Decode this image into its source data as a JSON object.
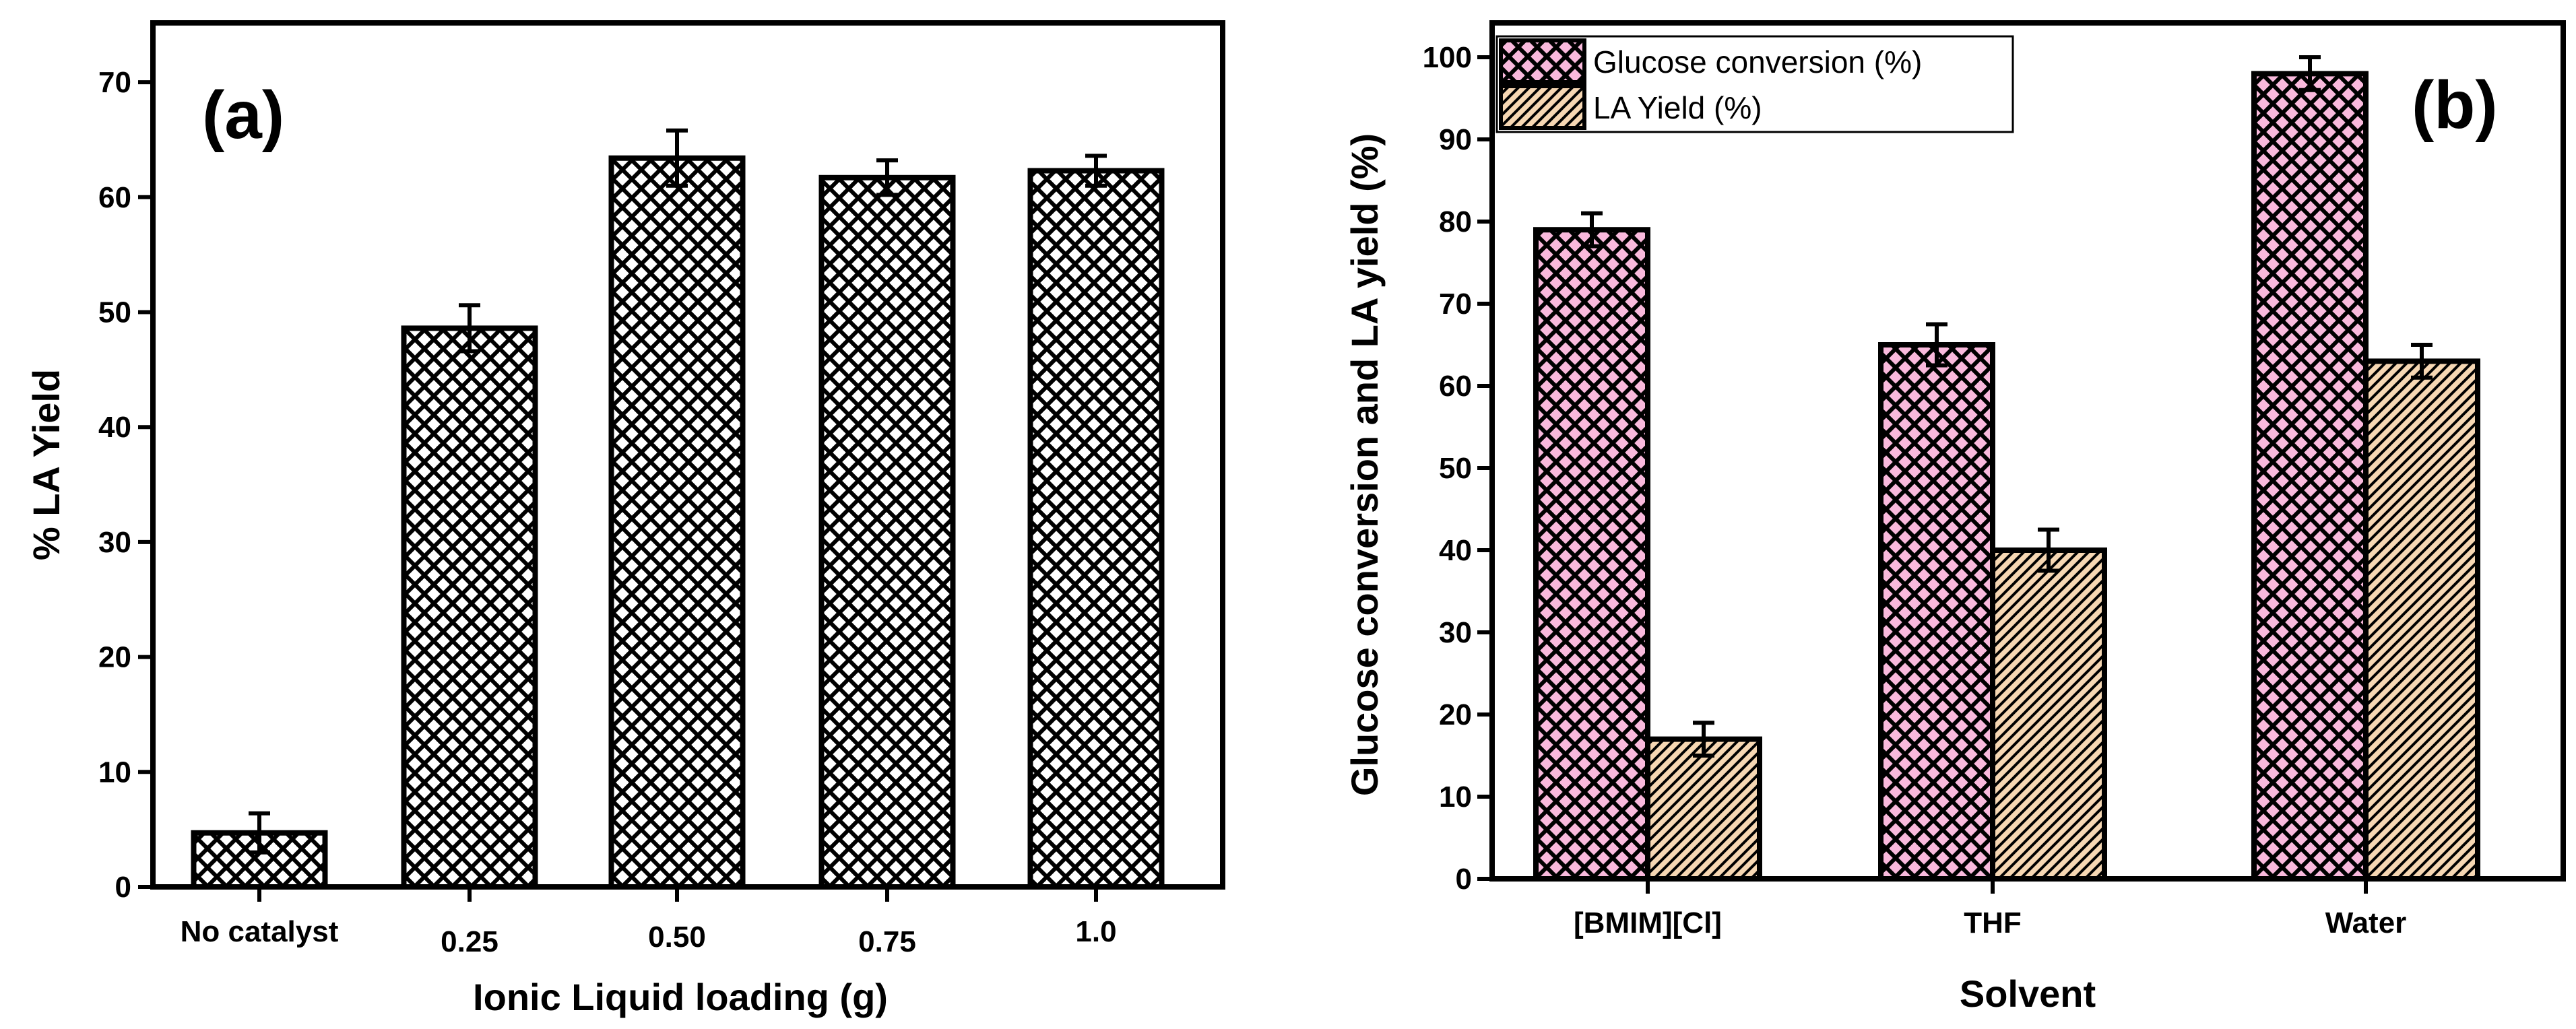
{
  "chart_data": [
    {
      "type": "bar",
      "panel_label": "(a)",
      "categories": [
        "No catalyst",
        "0.25",
        "0.50",
        "0.75",
        "1.0"
      ],
      "values": [
        4.7,
        48.6,
        63.4,
        61.7,
        62.3
      ],
      "errors": [
        1.7,
        2.0,
        2.4,
        1.5,
        1.3
      ],
      "xlabel": "Ionic Liquid loading (g)",
      "ylabel": "% LA Yield",
      "ylim": [
        0,
        75
      ],
      "yticks": [
        "0",
        "10",
        "20",
        "30",
        "40",
        "50",
        "60",
        "70"
      ],
      "fill": "#ffffff",
      "pattern": "crosshatch"
    },
    {
      "type": "bar",
      "panel_label": "(b)",
      "categories": [
        "[BMIM][Cl]",
        "THF",
        "Water"
      ],
      "series": [
        {
          "name": "Glucose conversion (%)",
          "values": [
            79,
            65,
            98
          ],
          "errors": [
            2,
            2.5,
            2
          ],
          "color": "#f9b9dc",
          "pattern": "crosshatch"
        },
        {
          "name": "LA Yield (%)",
          "values": [
            17,
            40,
            63
          ],
          "errors": [
            2,
            2.5,
            2
          ],
          "color": "#f6d7b3",
          "pattern": "diagonal"
        }
      ],
      "xlabel": "Solvent",
      "ylabel": "Glucose conversion and LA yield (%)",
      "ylim": [
        0,
        104
      ],
      "yticks": [
        "0",
        "10",
        "20",
        "30",
        "40",
        "50",
        "60",
        "70",
        "80",
        "90",
        "100"
      ],
      "legend": "top-left"
    }
  ]
}
